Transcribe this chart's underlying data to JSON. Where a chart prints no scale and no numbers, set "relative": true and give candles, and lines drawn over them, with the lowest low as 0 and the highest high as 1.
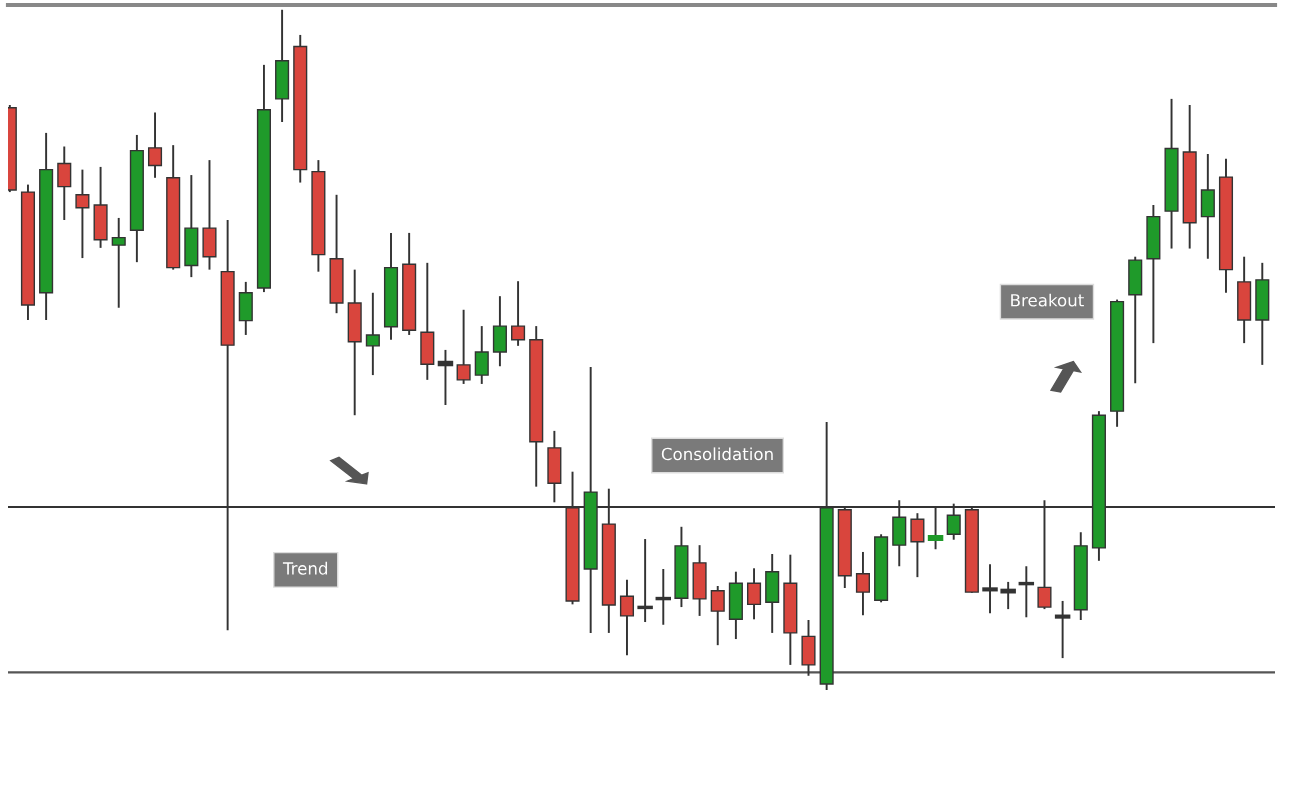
{
  "chart_data": {
    "type": "candlestick",
    "relative": true,
    "tick_labels": false,
    "categories": [
      null,
      null,
      null,
      null,
      null,
      null,
      null,
      null,
      null,
      null,
      null,
      null,
      null,
      null,
      null,
      null,
      null,
      null,
      null,
      null,
      null,
      null,
      null,
      null,
      null,
      null,
      null,
      null,
      null,
      null,
      null,
      null,
      null,
      null,
      null,
      null,
      null,
      null,
      null,
      null,
      null,
      null,
      null,
      null,
      null,
      null,
      null,
      null,
      null,
      null,
      null,
      null,
      null,
      null,
      null,
      null,
      null,
      null,
      null,
      null,
      null,
      null,
      null,
      null,
      null,
      null,
      null,
      null,
      null,
      null
    ],
    "ohlc": [
      [
        0.856,
        0.86,
        0.732,
        0.735
      ],
      [
        0.732,
        0.743,
        0.544,
        0.566
      ],
      [
        0.584,
        0.819,
        0.544,
        0.765
      ],
      [
        0.774,
        0.799,
        0.691,
        0.74
      ],
      [
        0.728,
        0.765,
        0.635,
        0.709
      ],
      [
        0.713,
        0.769,
        0.65,
        0.662
      ],
      [
        0.654,
        0.694,
        0.562,
        0.665
      ],
      [
        0.676,
        0.816,
        0.629,
        0.793
      ],
      [
        0.797,
        0.849,
        0.753,
        0.771
      ],
      [
        0.753,
        0.801,
        0.618,
        0.621
      ],
      [
        0.624,
        0.757,
        0.607,
        0.679
      ],
      [
        0.679,
        0.779,
        0.618,
        0.637
      ],
      [
        0.615,
        0.691,
        0.088,
        0.507
      ],
      [
        0.543,
        0.6,
        0.522,
        0.584
      ],
      [
        0.591,
        0.919,
        0.585,
        0.853
      ],
      [
        0.869,
        1.0,
        0.835,
        0.925
      ],
      [
        0.946,
        0.963,
        0.746,
        0.765
      ],
      [
        0.762,
        0.779,
        0.615,
        0.64
      ],
      [
        0.634,
        0.728,
        0.554,
        0.569
      ],
      [
        0.569,
        0.618,
        0.404,
        0.512
      ],
      [
        0.506,
        0.584,
        0.463,
        0.522
      ],
      [
        0.534,
        0.672,
        0.515,
        0.621
      ],
      [
        0.626,
        0.672,
        0.522,
        0.529
      ],
      [
        0.526,
        0.628,
        0.456,
        0.479
      ],
      [
        0.482,
        0.5,
        0.419,
        0.478
      ],
      [
        0.478,
        0.559,
        0.45,
        0.456
      ],
      [
        0.463,
        0.535,
        0.45,
        0.497
      ],
      [
        0.497,
        0.579,
        0.476,
        0.535
      ],
      [
        0.535,
        0.601,
        0.506,
        0.515
      ],
      [
        0.515,
        0.535,
        0.299,
        0.365
      ],
      [
        0.356,
        0.381,
        0.276,
        0.304
      ],
      [
        0.268,
        0.321,
        0.126,
        0.131
      ],
      [
        0.178,
        0.475,
        0.084,
        0.291
      ],
      [
        0.244,
        0.296,
        0.084,
        0.125
      ],
      [
        0.138,
        0.162,
        0.051,
        0.109
      ],
      [
        0.122,
        0.222,
        0.1,
        0.121
      ],
      [
        0.135,
        0.178,
        0.096,
        0.134
      ],
      [
        0.135,
        0.24,
        0.122,
        0.212
      ],
      [
        0.187,
        0.213,
        0.109,
        0.134
      ],
      [
        0.146,
        0.153,
        0.066,
        0.116
      ],
      [
        0.104,
        0.174,
        0.075,
        0.157
      ],
      [
        0.157,
        0.179,
        0.104,
        0.126
      ],
      [
        0.129,
        0.2,
        0.084,
        0.174
      ],
      [
        0.157,
        0.199,
        0.037,
        0.084
      ],
      [
        0.079,
        0.103,
        0.021,
        0.037
      ],
      [
        0.009,
        0.394,
        0.0,
        0.268
      ],
      [
        0.265,
        0.268,
        0.15,
        0.168
      ],
      [
        0.171,
        0.203,
        0.11,
        0.144
      ],
      [
        0.132,
        0.229,
        0.129,
        0.225
      ],
      [
        0.213,
        0.279,
        0.182,
        0.254
      ],
      [
        0.251,
        0.26,
        0.166,
        0.218
      ],
      [
        0.221,
        0.268,
        0.207,
        0.226
      ],
      [
        0.229,
        0.274,
        0.221,
        0.257
      ],
      [
        0.265,
        0.268,
        0.143,
        0.144
      ],
      [
        0.149,
        0.185,
        0.113,
        0.147
      ],
      [
        0.147,
        0.159,
        0.119,
        0.144
      ],
      [
        0.157,
        0.182,
        0.107,
        0.156
      ],
      [
        0.151,
        0.279,
        0.119,
        0.122
      ],
      [
        0.109,
        0.131,
        0.047,
        0.107
      ],
      [
        0.118,
        0.232,
        0.103,
        0.212
      ],
      [
        0.209,
        0.41,
        0.19,
        0.404
      ],
      [
        0.41,
        0.574,
        0.387,
        0.571
      ],
      [
        0.581,
        0.637,
        0.451,
        0.632
      ],
      [
        0.634,
        0.713,
        0.51,
        0.696
      ],
      [
        0.704,
        0.869,
        0.649,
        0.796
      ],
      [
        0.791,
        0.86,
        0.649,
        0.687
      ],
      [
        0.696,
        0.788,
        0.634,
        0.735
      ],
      [
        0.754,
        0.781,
        0.584,
        0.618
      ],
      [
        0.6,
        0.637,
        0.51,
        0.544
      ],
      [
        0.544,
        0.628,
        0.478,
        0.603
      ]
    ],
    "colors": [
      "#d9453d",
      "#d9453d",
      "#1f9a2a",
      "#d9453d",
      "#d9453d",
      "#d9453d",
      "#1f9a2a",
      "#1f9a2a",
      "#d9453d",
      "#d9453d",
      "#1f9a2a",
      "#d9453d",
      "#d9453d",
      "#1f9a2a",
      "#1f9a2a",
      "#1f9a2a",
      "#d9453d",
      "#d9453d",
      "#d9453d",
      "#d9453d",
      "#1f9a2a",
      "#1f9a2a",
      "#d9453d",
      "#d9453d",
      "#333333",
      "#d9453d",
      "#1f9a2a",
      "#1f9a2a",
      "#d9453d",
      "#d9453d",
      "#d9453d",
      "#d9453d",
      "#1f9a2a",
      "#d9453d",
      "#d9453d",
      "#333333",
      "#333333",
      "#1f9a2a",
      "#d9453d",
      "#d9453d",
      "#1f9a2a",
      "#d9453d",
      "#1f9a2a",
      "#d9453d",
      "#d9453d",
      "#1f9a2a",
      "#d9453d",
      "#d9453d",
      "#1f9a2a",
      "#1f9a2a",
      "#d9453d",
      "#1f9a2a",
      "#1f9a2a",
      "#d9453d",
      "#333333",
      "#333333",
      "#333333",
      "#d9453d",
      "#333333",
      "#1f9a2a",
      "#1f9a2a",
      "#1f9a2a",
      "#1f9a2a",
      "#1f9a2a",
      "#1f9a2a",
      "#d9453d",
      "#1f9a2a",
      "#d9453d",
      "#d9453d",
      "#1f9a2a"
    ],
    "ref_lines": [
      {
        "axis": "y",
        "value": 0.269,
        "color": "#333333"
      },
      {
        "axis": "y",
        "value": 0.026,
        "color": "#555555"
      }
    ],
    "annotations": [
      "Trend",
      "Consolidation",
      "Breakout"
    ]
  }
}
